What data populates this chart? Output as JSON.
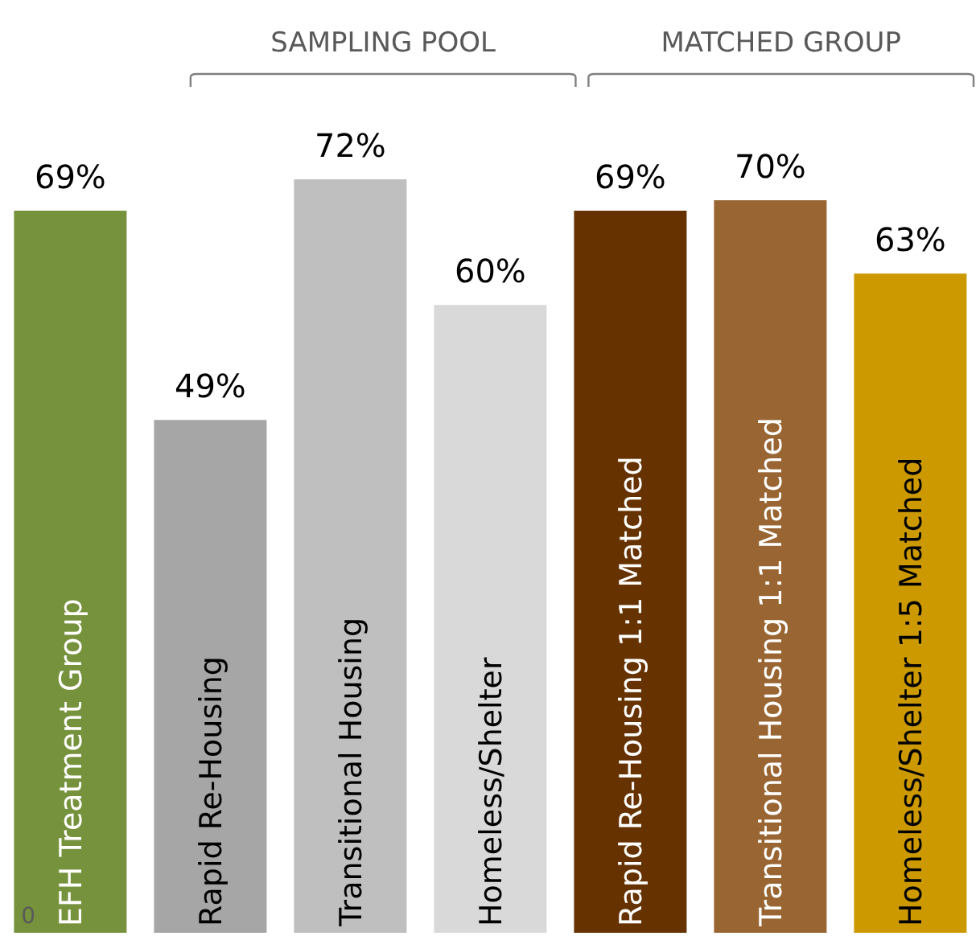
{
  "chart_data": {
    "type": "bar",
    "categories": [
      "EFH Treatment Group",
      "Rapid Re-Housing",
      "Transitional Housing",
      "Homeless/Shelter",
      "Rapid Re-Housing 1:1 Matched",
      "Transitional Housing 1:1 Matched",
      "Homeless/Shelter 1:5 Matched"
    ],
    "values": [
      69,
      49,
      72,
      60,
      69,
      70,
      63
    ],
    "colors": [
      "#76923c",
      "#a6a6a6",
      "#bfbfbf",
      "#d9d9d9",
      "#663300",
      "#996633",
      "#cc9900"
    ],
    "value_labels": [
      "69%",
      "49%",
      "72%",
      "60%",
      "69%",
      "70%",
      "63%"
    ],
    "annotations": [
      "SAMPLING POOL",
      "MATCHED GROUP",
      {
        "text": "0",
        "y": 0
      }
    ]
  }
}
